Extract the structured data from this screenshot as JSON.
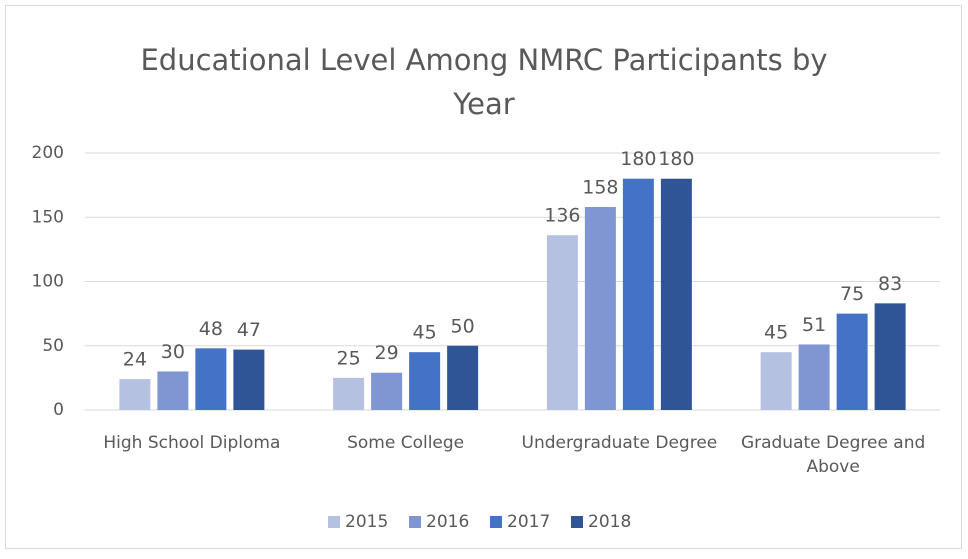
{
  "chart_data": {
    "type": "bar",
    "title": "Educational Level Among NMRC Participants by Year",
    "categories": [
      "High School Diploma",
      "Some College",
      "Undergraduate Degree",
      "Graduate Degree and Above"
    ],
    "series": [
      {
        "name": "2015",
        "color": "#b4c1e1",
        "values": [
          24,
          25,
          136,
          45
        ]
      },
      {
        "name": "2016",
        "color": "#7f96d3",
        "values": [
          30,
          29,
          158,
          51
        ]
      },
      {
        "name": "2017",
        "color": "#4472c4",
        "values": [
          48,
          45,
          180,
          75
        ]
      },
      {
        "name": "2018",
        "color": "#2f5597",
        "values": [
          47,
          50,
          180,
          83
        ]
      }
    ],
    "ylim": [
      0,
      200
    ],
    "yticks": [
      0,
      50,
      100,
      150,
      200
    ],
    "grid": true,
    "legend": "bottom"
  }
}
